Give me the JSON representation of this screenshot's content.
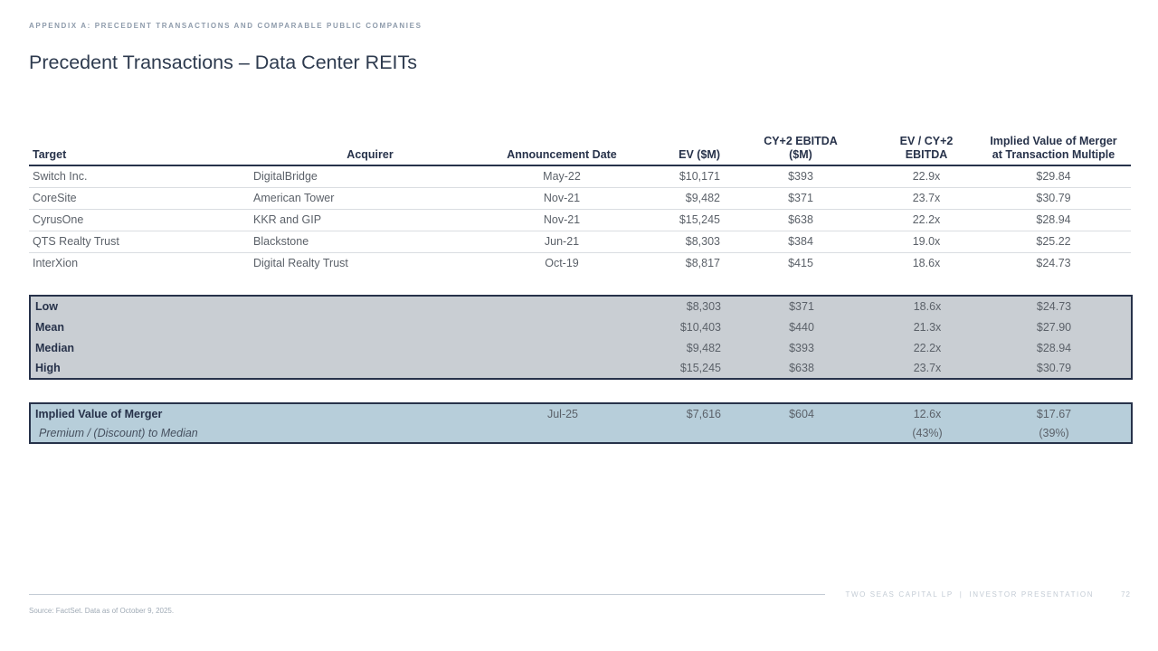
{
  "slide": {
    "eyebrow": "APPENDIX A: PRECEDENT TRANSACTIONS AND COMPARABLE PUBLIC COMPANIES",
    "title": "Precedent Transactions – Data Center REITs"
  },
  "table": {
    "headers": {
      "target": [
        "Target"
      ],
      "acquirer": [
        "Acquirer"
      ],
      "date": [
        "Announcement Date"
      ],
      "ev": [
        "EV ($M)"
      ],
      "ebitda": [
        "CY+2 EBITDA",
        "($M)"
      ],
      "evcy": [
        "EV / CY+2",
        "EBITDA"
      ],
      "implied": [
        "Implied Value of Merger",
        "at Transaction Multiple"
      ]
    },
    "rows": [
      {
        "target": "Switch Inc.",
        "acquirer": "DigitalBridge",
        "date": "May-22",
        "ev": "$10,171",
        "ebitda": "$393",
        "multiple": "22.9x",
        "implied": "$29.84"
      },
      {
        "target": "CoreSite",
        "acquirer": "American Tower",
        "date": "Nov-21",
        "ev": "$9,482",
        "ebitda": "$371",
        "multiple": "23.7x",
        "implied": "$30.79"
      },
      {
        "target": "CyrusOne",
        "acquirer": "KKR and GIP",
        "date": "Nov-21",
        "ev": "$15,245",
        "ebitda": "$638",
        "multiple": "22.2x",
        "implied": "$28.94"
      },
      {
        "target": "QTS Realty Trust",
        "acquirer": "Blackstone",
        "date": "Jun-21",
        "ev": "$8,303",
        "ebitda": "$384",
        "multiple": "19.0x",
        "implied": "$25.22"
      },
      {
        "target": "InterXion",
        "acquirer": "Digital Realty Trust",
        "date": "Oct-19",
        "ev": "$8,817",
        "ebitda": "$415",
        "multiple": "18.6x",
        "implied": "$24.73"
      }
    ],
    "stats": [
      {
        "label": "Low",
        "ev": "$8,303",
        "ebitda": "$371",
        "multiple": "18.6x",
        "implied": "$24.73"
      },
      {
        "label": "Mean",
        "ev": "$10,403",
        "ebitda": "$440",
        "multiple": "21.3x",
        "implied": "$27.90"
      },
      {
        "label": "Median",
        "ev": "$9,482",
        "ebitda": "$393",
        "multiple": "22.2x",
        "implied": "$28.94"
      },
      {
        "label": "High",
        "ev": "$15,245",
        "ebitda": "$638",
        "multiple": "23.7x",
        "implied": "$30.79"
      }
    ],
    "implied_box": {
      "row1": {
        "label": "Implied Value of Merger",
        "date": "Jul-25",
        "ev": "$7,616",
        "ebitda": "$604",
        "multiple": "12.6x",
        "implied": "$17.67"
      },
      "row2": {
        "label": "Premium / (Discount) to Median",
        "multiple": "(43%)",
        "implied": "(39%)"
      }
    }
  },
  "footer": {
    "source": "Source: FactSet. Data as of October 9, 2025.",
    "brand": "TWO SEAS CAPITAL LP",
    "separator": "|",
    "deck": "INVESTOR PRESENTATION",
    "page": "72"
  },
  "colors": {
    "navy": "#27324a",
    "body_text": "#5b6169",
    "summary_fill": "#c9ced3",
    "implied_fill": "#b7ceda",
    "negative_red": "#b94343"
  }
}
